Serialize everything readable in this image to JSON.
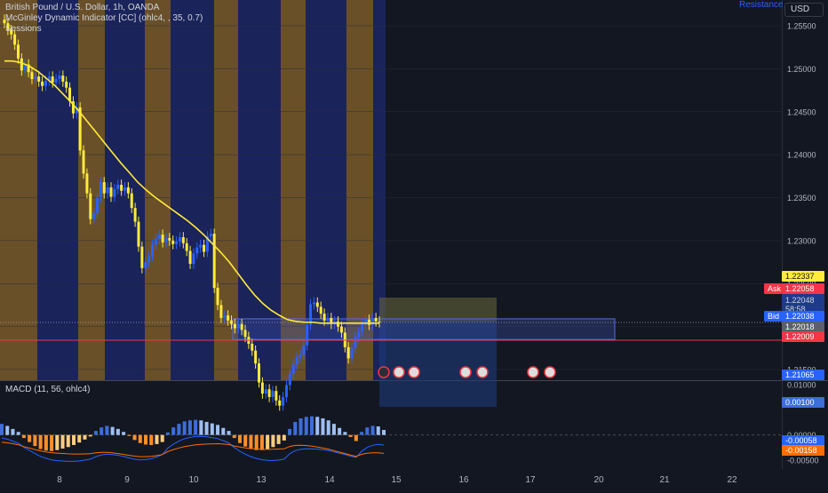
{
  "header": {
    "symbol_line": "British Pound / U.S. Dollar, 1h, OANDA",
    "indicator_line": "McGinley Dynamic Indicator [CC] (ohlc4, , 35, 0.7)",
    "sessions_line": "Sessions",
    "currency": "USD",
    "resistance_label": "Resistance"
  },
  "macd": {
    "title": "MACD (11, 56, ohlc4)",
    "hist_value": "0.00100",
    "macd_value": "-0.00058",
    "signal_value": "-0.00158"
  },
  "price_labels": {
    "ask_tag": "Ask",
    "ask_value": "1.22058",
    "bid_tag": "Bid",
    "last_value": "1.22048",
    "countdown": "58:58",
    "bid_value": "1.22038",
    "box_top": "1.22337",
    "box_mid": "1.22018",
    "red_line": "1.22009",
    "box_bottom": "1.21065"
  },
  "colors": {
    "background": "#131722",
    "up": "#2962ff",
    "down": "#ffeb3b",
    "mcginley": "#ffeb3b",
    "session_orange": "#7a5a2a",
    "session_blue": "#1c2560",
    "macd_line": "#2962ff",
    "signal_line": "#ff6d00",
    "hist_pos": "#3d6ed9",
    "hist_neg": "#ffcc80",
    "red_line": "#f23645"
  },
  "chart_data": {
    "type": "candlestick",
    "title": "British Pound / U.S. Dollar, 1h, OANDA",
    "x_tick_labels": [
      "8",
      "9",
      "10",
      "13",
      "14",
      "15",
      "16",
      "17",
      "20",
      "21",
      "22"
    ],
    "y_tick_labels": [
      "1.25500",
      "1.25000",
      "1.24500",
      "1.24000",
      "1.23500",
      "1.23000",
      "1.22500",
      "1.22000",
      "1.21500"
    ],
    "ylim": [
      1.2103,
      1.2568
    ],
    "macd_y_tick_labels": [
      "0.01000",
      "0.00000",
      "-0.00500"
    ],
    "macd_ylim": [
      -0.0055,
      0.0115
    ],
    "close_series": [
      1.2553,
      1.2545,
      1.254,
      1.2528,
      1.2512,
      1.2498,
      1.2505,
      1.2496,
      1.2488,
      1.2491,
      1.2485,
      1.248,
      1.2486,
      1.2491,
      1.2484,
      1.2488,
      1.2492,
      1.2485,
      1.2478,
      1.2462,
      1.2448,
      1.2455,
      1.2405,
      1.2378,
      1.2355,
      1.2325,
      1.2332,
      1.235,
      1.2368,
      1.2355,
      1.2362,
      1.2351,
      1.236,
      1.2365,
      1.2358,
      1.2362,
      1.2355,
      1.2338,
      1.2322,
      1.2293,
      1.2268,
      1.2275,
      1.2282,
      1.2295,
      1.2302,
      1.2307,
      1.2298,
      1.2303,
      1.23,
      1.2296,
      1.2299,
      1.2304,
      1.2297,
      1.2288,
      1.2273,
      1.2285,
      1.2292,
      1.2295,
      1.2287,
      1.2305,
      1.2308,
      1.2245,
      1.2225,
      1.221,
      1.2213,
      1.2207,
      1.2203,
      1.2198,
      1.2203,
      1.2196,
      1.2188,
      1.218,
      1.2172,
      1.2157,
      1.2135,
      1.2122,
      1.2127,
      1.2118,
      1.2125,
      1.2114,
      1.2108,
      1.2118,
      1.2132,
      1.2145,
      1.2156,
      1.2164,
      1.2167,
      1.2178,
      1.2202,
      1.2226,
      1.2228,
      1.2223,
      1.2215,
      1.2207,
      1.221,
      1.2203,
      1.2206,
      1.22,
      1.2193,
      1.2176,
      1.2163,
      1.2175,
      1.2188,
      1.2194,
      1.2203,
      1.2208,
      1.2202,
      1.221,
      1.2206,
      1.2205
    ],
    "mcginley_series": [
      1.2509,
      1.2509,
      1.2507,
      1.2503,
      1.2497,
      1.2489,
      1.2481,
      1.2471,
      1.2461,
      1.245,
      1.2438,
      1.2426,
      1.2414,
      1.2402,
      1.239,
      1.2379,
      1.2368,
      1.2359,
      1.2351,
      1.2344,
      1.2337,
      1.233,
      1.2323,
      1.2315,
      1.2306,
      1.2296,
      1.2286,
      1.2275,
      1.2262,
      1.2249,
      1.2237,
      1.2227,
      1.2219,
      1.2213,
      1.2208,
      1.2206,
      1.2205,
      1.2205,
      1.2204,
      1.2204,
      1.2204,
      1.2204,
      1.2204,
      1.2204,
      1.2204,
      1.2204
    ],
    "macd_histogram": [
      0.0022,
      0.0018,
      0.0012,
      0.0006,
      -0.0006,
      -0.0014,
      -0.0022,
      -0.0028,
      -0.0031,
      -0.0032,
      -0.003,
      -0.0027,
      -0.0024,
      -0.002,
      -0.0015,
      -0.0009,
      -0.0003,
      0.0008,
      0.0015,
      0.0018,
      0.0016,
      0.0012,
      0.0006,
      -0.0002,
      -0.001,
      -0.0016,
      -0.0019,
      -0.002,
      -0.0018,
      -0.0014,
      0.0005,
      0.0015,
      0.0022,
      0.0027,
      0.0029,
      0.003,
      0.0029,
      0.0026,
      0.0023,
      0.002,
      0.0014,
      0.0008,
      -0.0006,
      -0.0016,
      -0.0023,
      -0.0028,
      -0.003,
      -0.003,
      -0.0028,
      -0.0024,
      -0.0018,
      -0.0011,
      0.0012,
      0.0026,
      0.0033,
      0.0036,
      0.0037,
      0.0036,
      0.0033,
      0.0029,
      0.0022,
      0.0014,
      0.0006,
      -0.0004,
      -0.0012,
      0.0006,
      0.0015,
      0.0018,
      0.0017,
      0.001
    ]
  }
}
